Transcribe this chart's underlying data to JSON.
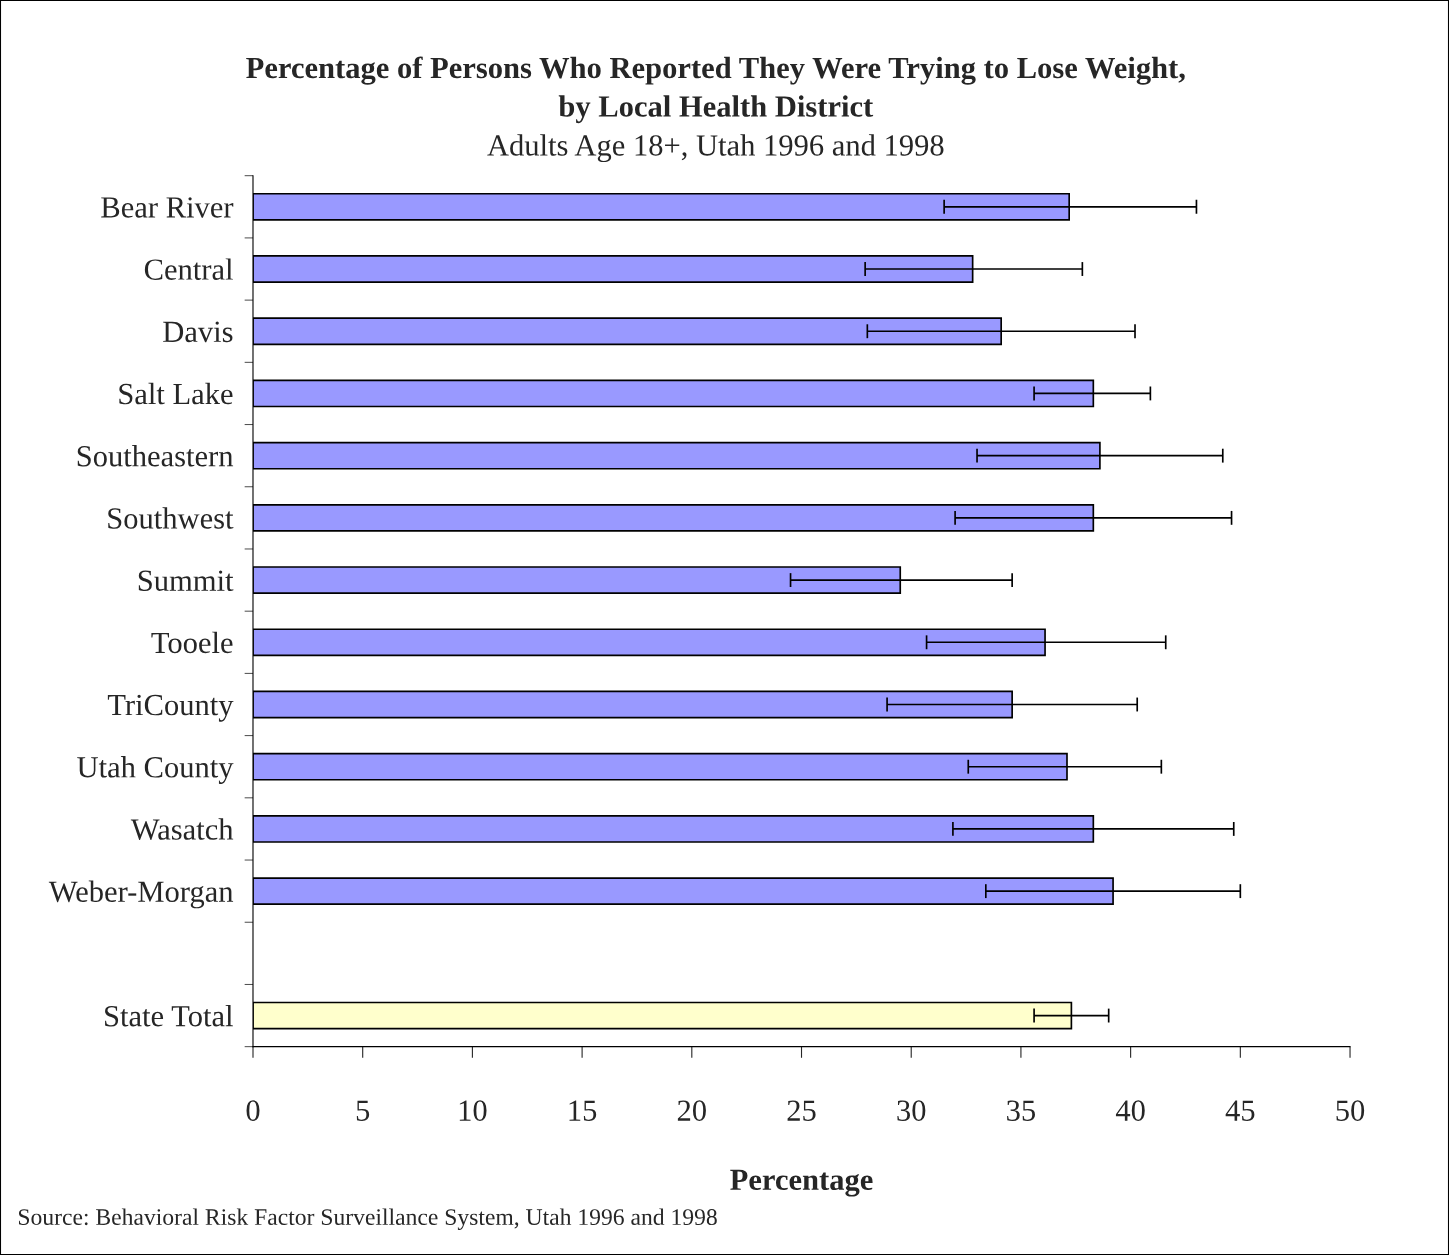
{
  "chart_data": {
    "type": "bar",
    "orientation": "horizontal",
    "title": "Percentage of Persons Who Reported They Were Trying to Lose Weight,\nby Local Health District",
    "subtitle": "Adults Age 18+, Utah 1996 and 1998",
    "xlabel": "Percentage",
    "categories": [
      "Bear River",
      "Central",
      "Davis",
      "Salt Lake",
      "Southeastern",
      "Southwest",
      "Summit",
      "Tooele",
      "TriCounty",
      "Utah County",
      "Wasatch",
      "Weber-Morgan",
      null,
      "State Total"
    ],
    "values": [
      37.2,
      32.8,
      34.1,
      38.3,
      38.6,
      38.3,
      29.5,
      36.1,
      34.6,
      37.1,
      38.3,
      39.2,
      null,
      37.3
    ],
    "errors": [
      [
        31.5,
        43.0
      ],
      [
        27.9,
        37.8
      ],
      [
        28.0,
        40.2
      ],
      [
        35.6,
        40.9
      ],
      [
        33.0,
        44.2
      ],
      [
        32.0,
        44.6
      ],
      [
        24.5,
        34.6
      ],
      [
        30.7,
        41.6
      ],
      [
        28.9,
        40.3
      ],
      [
        32.6,
        41.4
      ],
      [
        31.9,
        44.7
      ],
      [
        33.4,
        45.0
      ],
      null,
      [
        35.6,
        39.0
      ]
    ],
    "colors": [
      "#9999ff",
      "#9999ff",
      "#9999ff",
      "#9999ff",
      "#9999ff",
      "#9999ff",
      "#9999ff",
      "#9999ff",
      "#9999ff",
      "#9999ff",
      "#9999ff",
      "#9999ff",
      "#9999ff",
      "#ffffcc"
    ],
    "xlim": [
      0,
      50
    ],
    "xticks": [
      0,
      5,
      10,
      15,
      20,
      25,
      30,
      35,
      40,
      45,
      50
    ],
    "grid": false,
    "legend": false,
    "annotations": [
      "Source: Behavioral Risk Factor Surveillance System, Utah 1996 and 1998"
    ]
  }
}
